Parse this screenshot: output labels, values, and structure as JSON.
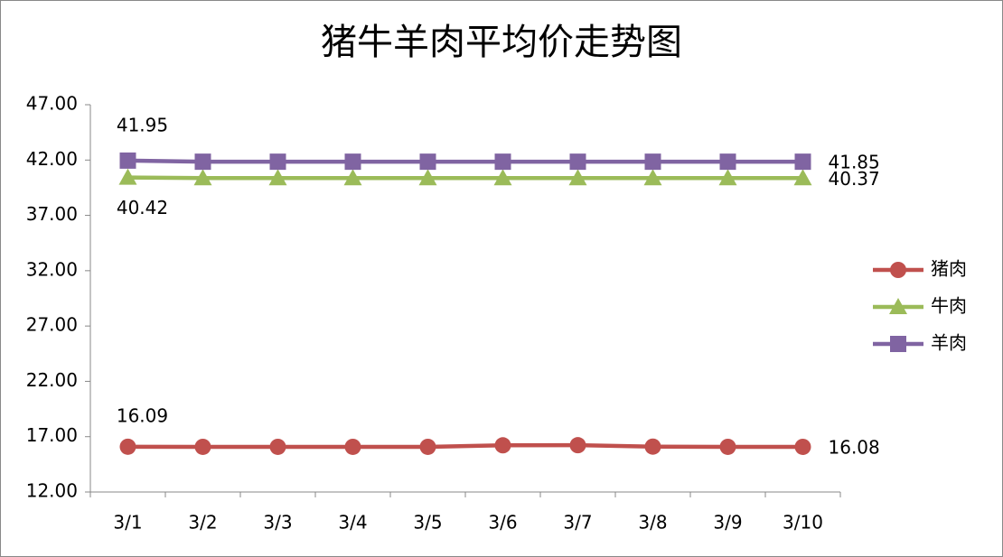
{
  "chart_data": {
    "type": "line",
    "title": "猪牛羊肉平均价走势图",
    "categories": [
      "3/1",
      "3/2",
      "3/3",
      "3/4",
      "3/5",
      "3/6",
      "3/7",
      "3/8",
      "3/9",
      "3/10"
    ],
    "series": [
      {
        "name": "猪肉",
        "color": "#c0504d",
        "marker": "circle",
        "values": [
          16.09,
          16.08,
          16.08,
          16.08,
          16.08,
          16.22,
          16.23,
          16.1,
          16.08,
          16.08
        ]
      },
      {
        "name": "牛肉",
        "color": "#9bbb59",
        "marker": "triangle",
        "values": [
          40.42,
          40.37,
          40.37,
          40.37,
          40.37,
          40.37,
          40.37,
          40.37,
          40.37,
          40.37
        ]
      },
      {
        "name": "羊肉",
        "color": "#8064a2",
        "marker": "square",
        "values": [
          41.95,
          41.85,
          41.85,
          41.85,
          41.85,
          41.85,
          41.85,
          41.85,
          41.85,
          41.85
        ]
      }
    ],
    "ylim": [
      12,
      47
    ],
    "yticks": [
      {
        "value": 12,
        "label": "12.00"
      },
      {
        "value": 17,
        "label": "17.00"
      },
      {
        "value": 22,
        "label": "22.00"
      },
      {
        "value": 27,
        "label": "27.00"
      },
      {
        "value": 32,
        "label": "32.00"
      },
      {
        "value": 37,
        "label": "37.00"
      },
      {
        "value": 42,
        "label": "42.00"
      },
      {
        "value": 47,
        "label": "47.00"
      }
    ],
    "grid": false,
    "legend": "right"
  }
}
